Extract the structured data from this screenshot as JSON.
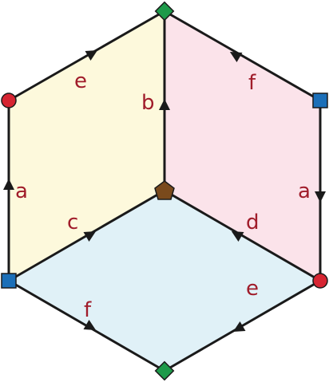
{
  "diagram": {
    "colors": {
      "face_left": "#fdf9dc",
      "face_right": "#fbe3ea",
      "face_bottom": "#e0f1f7",
      "edge": "#1a1a1a",
      "label": "#a01c2a",
      "vertex_circle": "#d62532",
      "vertex_square": "#1b6fb8",
      "vertex_diamond": "#1e9a4a",
      "vertex_pentagon": "#7a4a1c"
    },
    "labels": {
      "top_left": "e",
      "top_right": "f",
      "center_up": "b",
      "left_side": "a",
      "right_side": "a",
      "center_left": "c",
      "center_right": "d",
      "bottom_left": "f",
      "bottom_right": "e"
    },
    "vertex_shapes": [
      "diamond",
      "circle",
      "square",
      "pentagon",
      "square",
      "circle",
      "diamond"
    ]
  }
}
